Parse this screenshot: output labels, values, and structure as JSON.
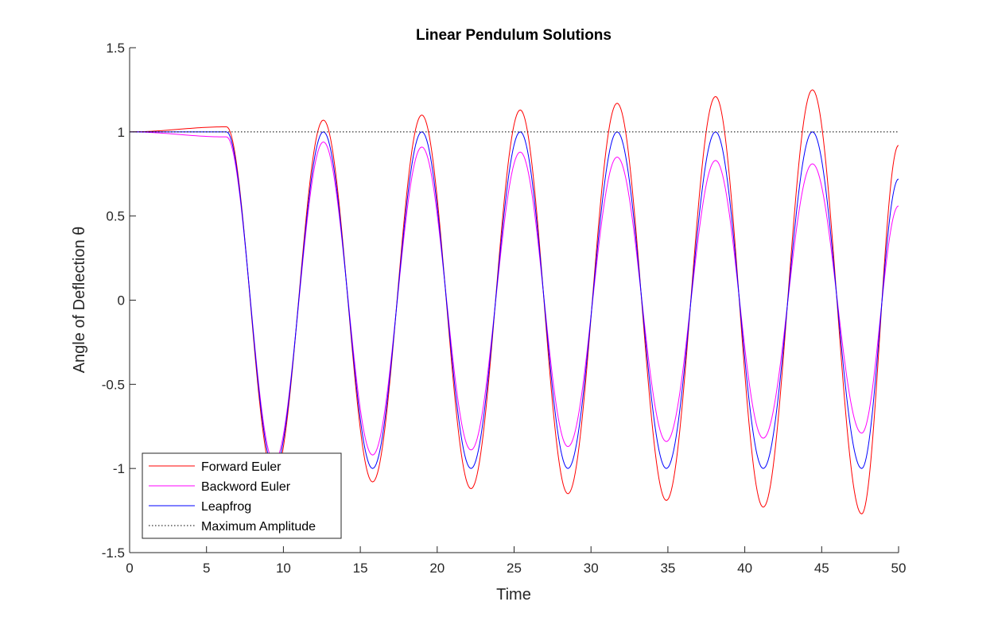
{
  "chart_data": {
    "type": "line",
    "title": "Linear Pendulum Solutions",
    "xlabel": "Time",
    "ylabel": "Angle of Deflection θ",
    "xlim": [
      0,
      50
    ],
    "ylim": [
      -1.5,
      1.5
    ],
    "xticks": [
      "0",
      "5",
      "10",
      "15",
      "20",
      "25",
      "30",
      "35",
      "40",
      "45",
      "50"
    ],
    "yticks": [
      "-1.5",
      "-1",
      "-0.5",
      "0",
      "0.5",
      "1",
      "1.5"
    ],
    "grid": false,
    "legend_position": "bottom-left",
    "series": [
      {
        "name": "Forward Euler",
        "color": "#ff0000",
        "style": "solid",
        "envelope": "growing",
        "x": [
          0,
          6.3,
          9.4,
          12.6,
          15.8,
          19.0,
          22.2,
          25.4,
          28.5,
          31.7,
          34.9,
          38.1,
          41.2,
          44.4,
          47.6,
          50
        ],
        "y": [
          1.0,
          1.03,
          -1.05,
          1.07,
          -1.08,
          1.1,
          -1.12,
          1.13,
          -1.15,
          1.17,
          -1.19,
          1.21,
          -1.23,
          1.25,
          -1.27,
          0.92
        ]
      },
      {
        "name": "Backword Euler",
        "color": "#ff00ff",
        "style": "solid",
        "envelope": "decaying",
        "x": [
          0,
          6.3,
          9.4,
          12.6,
          15.8,
          19.0,
          22.2,
          25.4,
          28.5,
          31.7,
          34.9,
          38.1,
          41.2,
          44.4,
          47.6,
          50
        ],
        "y": [
          1.0,
          0.97,
          -0.96,
          0.94,
          -0.92,
          0.91,
          -0.89,
          0.88,
          -0.87,
          0.85,
          -0.84,
          0.83,
          -0.82,
          0.81,
          -0.79,
          0.56
        ]
      },
      {
        "name": "Leapfrog",
        "color": "#0000ff",
        "style": "solid",
        "envelope": "constant",
        "x": [
          0,
          6.3,
          9.4,
          12.6,
          15.8,
          19.0,
          22.2,
          25.4,
          28.5,
          31.7,
          34.9,
          38.1,
          41.2,
          44.4,
          47.6,
          50
        ],
        "y": [
          1.0,
          1.0,
          -1.0,
          1.0,
          -1.0,
          1.0,
          -1.0,
          1.0,
          -1.0,
          1.0,
          -1.0,
          1.0,
          -1.0,
          1.0,
          -1.0,
          0.72
        ]
      },
      {
        "name": "Maximum Amplitude",
        "color": "#000000",
        "style": "dotted",
        "x": [
          0,
          50
        ],
        "y": [
          1,
          1
        ]
      }
    ]
  }
}
